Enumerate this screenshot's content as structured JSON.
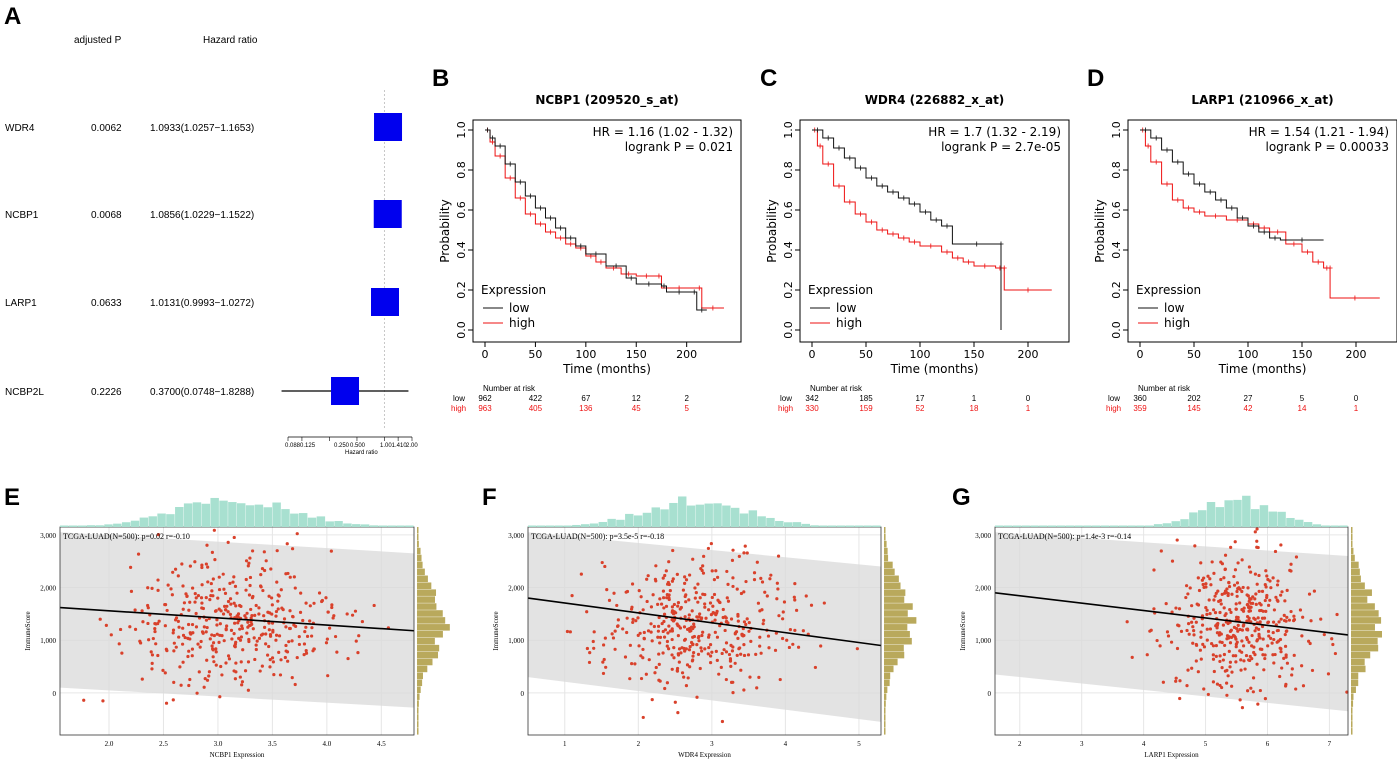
{
  "panel_letters": [
    "A",
    "B",
    "C",
    "D",
    "E",
    "F",
    "G"
  ],
  "chart_data": [
    {
      "type": "forest",
      "panel": "A",
      "headers": {
        "p": "adjusted P",
        "hr": "Hazard ratio"
      },
      "rows": [
        {
          "gene": "WDR4",
          "p": "0.0062",
          "hr_text": "1.0933(1.0257−1.1653)",
          "hr": 1.0933,
          "lo": 1.0257,
          "hi": 1.1653
        },
        {
          "gene": "NCBP1",
          "p": "0.0068",
          "hr_text": "1.0856(1.0229−1.1522)",
          "hr": 1.0856,
          "lo": 1.0229,
          "hi": 1.1522
        },
        {
          "gene": "LARP1",
          "p": "0.0633",
          "hr_text": "1.0131(0.9993−1.0272)",
          "hr": 1.0131,
          "lo": 0.9993,
          "hi": 1.0272
        },
        {
          "gene": "NCBP2L",
          "p": "0.2226",
          "hr_text": "0.3700(0.0748−1.8288)",
          "hr": 0.37,
          "lo": 0.0748,
          "hi": 1.8288
        }
      ],
      "axis_ticks": [
        "0.0880.125",
        "0.250",
        "0.500",
        "1.001.410",
        "2.00"
      ],
      "axis_tick_values": [
        0.088,
        0.125,
        0.25,
        0.5,
        1.0,
        1.41,
        2.0
      ],
      "xlabel": "Hazard ratio"
    },
    {
      "type": "km",
      "panel": "B",
      "title": "NCBP1 (209520_s_at)",
      "hr_label": "HR = 1.16 (1.02 - 1.32)",
      "p_label": "logrank P = 0.021",
      "ylabel": "Probability",
      "xlabel": "Time (months)",
      "xlim": [
        0,
        240
      ],
      "ylim": [
        0,
        1
      ],
      "xticks": [
        "0",
        "50",
        "100",
        "150",
        "200"
      ],
      "xtick_values": [
        0,
        50,
        100,
        150,
        200
      ],
      "yticks": [
        "0.0",
        "0.2",
        "0.4",
        "0.6",
        "0.8",
        "1.0"
      ],
      "ytick_values": [
        0,
        0.2,
        0.4,
        0.6,
        0.8,
        1.0
      ],
      "legend_title": "Expression",
      "legend": [
        "low",
        "high"
      ],
      "low": [
        [
          0,
          1.0
        ],
        [
          5,
          0.96
        ],
        [
          10,
          0.92
        ],
        [
          20,
          0.83
        ],
        [
          30,
          0.74
        ],
        [
          40,
          0.67
        ],
        [
          50,
          0.61
        ],
        [
          60,
          0.56
        ],
        [
          70,
          0.51
        ],
        [
          80,
          0.46
        ],
        [
          90,
          0.42
        ],
        [
          100,
          0.38
        ],
        [
          120,
          0.32
        ],
        [
          140,
          0.26
        ],
        [
          150,
          0.23
        ],
        [
          175,
          0.22
        ],
        [
          180,
          0.19
        ],
        [
          205,
          0.19
        ],
        [
          210,
          0.1
        ],
        [
          220,
          0.1
        ]
      ],
      "high": [
        [
          0,
          1.0
        ],
        [
          5,
          0.94
        ],
        [
          10,
          0.87
        ],
        [
          20,
          0.76
        ],
        [
          30,
          0.66
        ],
        [
          40,
          0.58
        ],
        [
          50,
          0.53
        ],
        [
          60,
          0.49
        ],
        [
          70,
          0.46
        ],
        [
          80,
          0.43
        ],
        [
          90,
          0.41
        ],
        [
          100,
          0.37
        ],
        [
          110,
          0.34
        ],
        [
          120,
          0.31
        ],
        [
          135,
          0.28
        ],
        [
          150,
          0.27
        ],
        [
          170,
          0.27
        ],
        [
          175,
          0.21
        ],
        [
          210,
          0.21
        ],
        [
          215,
          0.11
        ],
        [
          237,
          0.11
        ]
      ],
      "risk_label": "Number at risk",
      "risk_low_label": "low",
      "risk_high_label": "high",
      "risk_low": [
        "962",
        "422",
        "67",
        "12",
        "2"
      ],
      "risk_high": [
        "963",
        "405",
        "136",
        "45",
        "5"
      ]
    },
    {
      "type": "km",
      "panel": "C",
      "title": "WDR4 (226882_x_at)",
      "hr_label": "HR = 1.7 (1.32 - 2.19)",
      "p_label": "logrank P = 2.7e-05",
      "ylabel": "Probability",
      "xlabel": "Time (months)",
      "xlim": [
        0,
        225
      ],
      "ylim": [
        0,
        1
      ],
      "xticks": [
        "0",
        "50",
        "100",
        "150",
        "200"
      ],
      "xtick_values": [
        0,
        50,
        100,
        150,
        200
      ],
      "yticks": [
        "0.0",
        "0.2",
        "0.4",
        "0.6",
        "0.8",
        "1.0"
      ],
      "ytick_values": [
        0,
        0.2,
        0.4,
        0.6,
        0.8,
        1.0
      ],
      "legend_title": "Expression",
      "legend": [
        "low",
        "high"
      ],
      "low": [
        [
          0,
          1.0
        ],
        [
          10,
          0.96
        ],
        [
          20,
          0.91
        ],
        [
          30,
          0.86
        ],
        [
          40,
          0.81
        ],
        [
          50,
          0.76
        ],
        [
          60,
          0.72
        ],
        [
          70,
          0.69
        ],
        [
          80,
          0.66
        ],
        [
          90,
          0.63
        ],
        [
          100,
          0.59
        ],
        [
          110,
          0.55
        ],
        [
          120,
          0.52
        ],
        [
          130,
          0.43
        ],
        [
          175,
          0.43
        ],
        [
          175,
          0.0
        ]
      ],
      "high": [
        [
          0,
          1.0
        ],
        [
          5,
          0.92
        ],
        [
          10,
          0.83
        ],
        [
          20,
          0.72
        ],
        [
          30,
          0.64
        ],
        [
          40,
          0.58
        ],
        [
          50,
          0.54
        ],
        [
          60,
          0.5
        ],
        [
          70,
          0.48
        ],
        [
          80,
          0.46
        ],
        [
          90,
          0.44
        ],
        [
          100,
          0.42
        ],
        [
          120,
          0.39
        ],
        [
          130,
          0.36
        ],
        [
          140,
          0.34
        ],
        [
          150,
          0.32
        ],
        [
          170,
          0.31
        ],
        [
          178,
          0.31
        ],
        [
          178,
          0.2
        ],
        [
          222,
          0.2
        ]
      ],
      "risk_label": "Number at risk",
      "risk_low_label": "low",
      "risk_high_label": "high",
      "risk_low": [
        "342",
        "185",
        "17",
        "1",
        "0"
      ],
      "risk_high": [
        "330",
        "159",
        "52",
        "18",
        "1"
      ]
    },
    {
      "type": "km",
      "panel": "D",
      "title": "LARP1 (210966_x_at)",
      "hr_label": "HR = 1.54 (1.21 - 1.94)",
      "p_label": "logrank P = 0.00033",
      "ylabel": "Probability",
      "xlabel": "Time (months)",
      "xlim": [
        0,
        225
      ],
      "ylim": [
        0,
        1
      ],
      "xticks": [
        "0",
        "50",
        "100",
        "150",
        "200"
      ],
      "xtick_values": [
        0,
        50,
        100,
        150,
        200
      ],
      "yticks": [
        "0.0",
        "0.2",
        "0.4",
        "0.6",
        "0.8",
        "1.0"
      ],
      "ytick_values": [
        0,
        0.2,
        0.4,
        0.6,
        0.8,
        1.0
      ],
      "legend_title": "Expression",
      "legend": [
        "low",
        "high"
      ],
      "low": [
        [
          0,
          1.0
        ],
        [
          10,
          0.96
        ],
        [
          20,
          0.9
        ],
        [
          30,
          0.84
        ],
        [
          40,
          0.78
        ],
        [
          50,
          0.73
        ],
        [
          60,
          0.69
        ],
        [
          70,
          0.65
        ],
        [
          80,
          0.61
        ],
        [
          90,
          0.56
        ],
        [
          100,
          0.52
        ],
        [
          110,
          0.49
        ],
        [
          120,
          0.46
        ],
        [
          130,
          0.45
        ],
        [
          170,
          0.45
        ]
      ],
      "high": [
        [
          0,
          1.0
        ],
        [
          5,
          0.92
        ],
        [
          10,
          0.84
        ],
        [
          20,
          0.73
        ],
        [
          30,
          0.65
        ],
        [
          40,
          0.61
        ],
        [
          50,
          0.59
        ],
        [
          60,
          0.57
        ],
        [
          80,
          0.55
        ],
        [
          100,
          0.53
        ],
        [
          110,
          0.51
        ],
        [
          120,
          0.49
        ],
        [
          135,
          0.43
        ],
        [
          150,
          0.39
        ],
        [
          160,
          0.34
        ],
        [
          170,
          0.31
        ],
        [
          176,
          0.31
        ],
        [
          176,
          0.16
        ],
        [
          222,
          0.16
        ]
      ],
      "risk_label": "Number at risk",
      "risk_low_label": "low",
      "risk_high_label": "high",
      "risk_low": [
        "360",
        "202",
        "27",
        "5",
        "0"
      ],
      "risk_high": [
        "359",
        "145",
        "42",
        "14",
        "1"
      ]
    },
    {
      "type": "scatter",
      "panel": "E",
      "annotation": "TCGA-LUAD(N=500): p=0.02 r=-0.10",
      "xlabel": "NCBP1 Expression",
      "ylabel": "ImmuneScore",
      "xlim": [
        1.55,
        4.8
      ],
      "ylim": [
        -800,
        3150
      ],
      "xticks": [
        "2.0",
        "2.5",
        "3.0",
        "3.5",
        "4.0",
        "4.5"
      ],
      "xtick_values": [
        2.0,
        2.5,
        3.0,
        3.5,
        4.0,
        4.5
      ],
      "yticks": [
        "0",
        "1,000",
        "2,000",
        "3,000"
      ],
      "ytick_values": [
        0,
        1000,
        2000,
        3000
      ],
      "fit": [
        [
          1.55,
          1620
        ],
        [
          4.8,
          1180
        ]
      ],
      "band_top": [
        [
          1.55,
          3050
        ],
        [
          4.8,
          2650
        ]
      ],
      "band_bottom": [
        [
          1.55,
          100
        ],
        [
          4.8,
          -280
        ]
      ],
      "center_x": 3.15,
      "sd_x": 0.55,
      "center_y": 1350,
      "sd_y": 650,
      "n": 420,
      "seed": 11
    },
    {
      "type": "scatter",
      "panel": "F",
      "annotation": "TCGA-LUAD(N=500): p=3.5e-5 r=-0.18",
      "xlabel": "WDR4 Expression",
      "ylabel": "ImmuneScore",
      "xlim": [
        0.5,
        5.3
      ],
      "ylim": [
        -800,
        3150
      ],
      "xticks": [
        "1",
        "2",
        "3",
        "4",
        "5"
      ],
      "xtick_values": [
        1,
        2,
        3,
        4,
        5
      ],
      "yticks": [
        "0",
        "1,000",
        "2,000",
        "3,000"
      ],
      "ytick_values": [
        0,
        1000,
        2000,
        3000
      ],
      "fit": [
        [
          0.5,
          1800
        ],
        [
          5.3,
          900
        ]
      ],
      "band_top": [
        [
          0.5,
          3050
        ],
        [
          5.3,
          2400
        ]
      ],
      "band_bottom": [
        [
          0.5,
          300
        ],
        [
          5.3,
          -550
        ]
      ],
      "center_x": 2.8,
      "sd_x": 0.7,
      "center_y": 1350,
      "sd_y": 650,
      "n": 420,
      "seed": 23
    },
    {
      "type": "scatter",
      "panel": "G",
      "annotation": "TCGA-LUAD(N=500): p=1.4e-3 r=-0.14",
      "xlabel": "LARP1 Expression",
      "ylabel": "ImmuneScore",
      "xlim": [
        1.6,
        7.3
      ],
      "ylim": [
        -800,
        3150
      ],
      "xticks": [
        "2",
        "3",
        "4",
        "5",
        "6",
        "7"
      ],
      "xtick_values": [
        2,
        3,
        4,
        5,
        6,
        7
      ],
      "yticks": [
        "0",
        "1,000",
        "2,000",
        "3,000"
      ],
      "ytick_values": [
        0,
        1000,
        2000,
        3000
      ],
      "fit": [
        [
          1.6,
          1900
        ],
        [
          7.3,
          1100
        ]
      ],
      "band_top": [
        [
          1.6,
          3050
        ],
        [
          7.3,
          2600
        ]
      ],
      "band_bottom": [
        [
          1.6,
          350
        ],
        [
          7.3,
          -350
        ]
      ],
      "center_x": 5.5,
      "sd_x": 0.6,
      "center_y": 1300,
      "sd_y": 650,
      "n": 420,
      "seed": 37
    }
  ]
}
